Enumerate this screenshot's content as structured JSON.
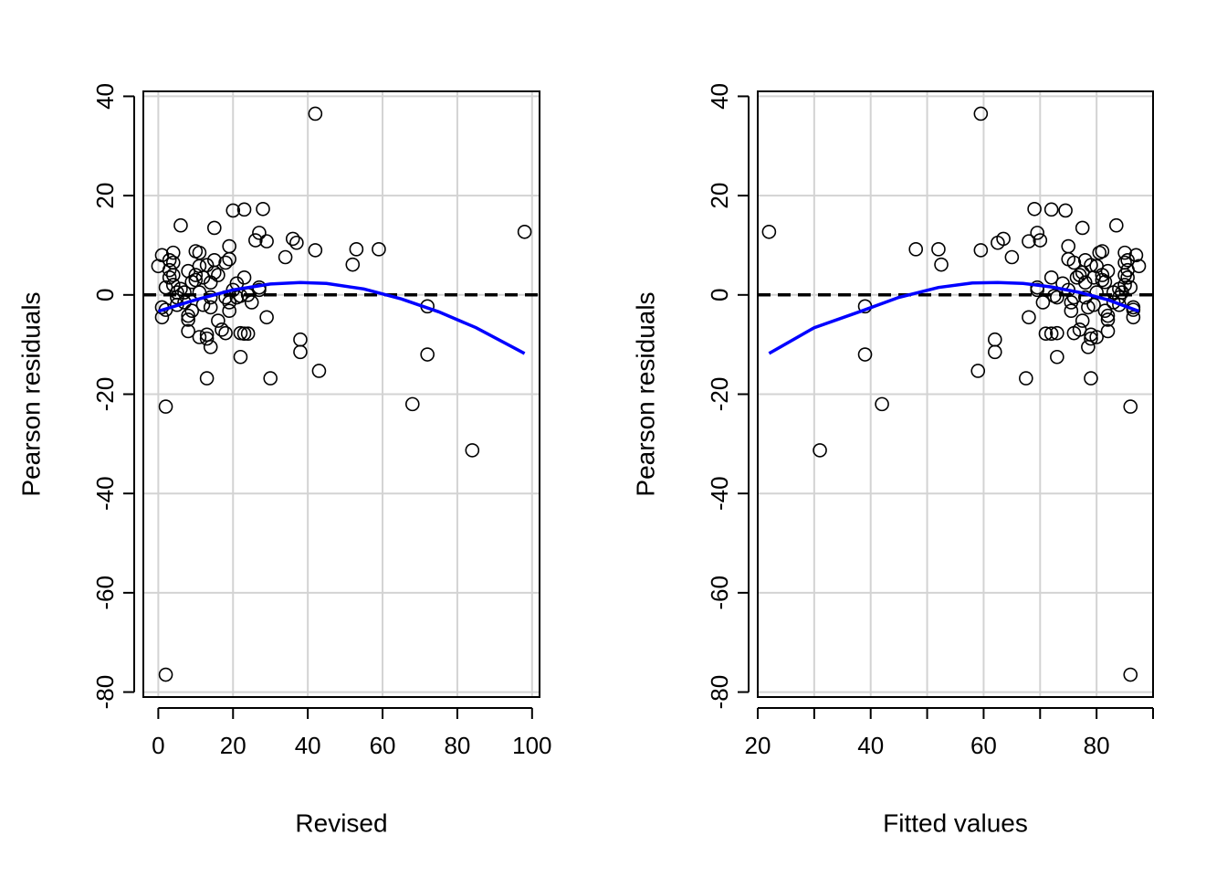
{
  "chart_data": [
    {
      "type": "scatter",
      "xlabel": "Revised",
      "ylabel": "Pearson residuals",
      "xlim": [
        -4,
        102
      ],
      "ylim": [
        -81,
        41
      ],
      "xticks": [
        0,
        20,
        40,
        60,
        80,
        100
      ],
      "yticks": [
        -80,
        -60,
        -40,
        -20,
        0,
        20,
        40
      ],
      "xtick_labels": [
        "0",
        "20",
        "40",
        "60",
        "80",
        "100"
      ],
      "ytick_labels": [
        "-80",
        "-60",
        "-40",
        "-20",
        "0",
        "20",
        "40"
      ],
      "grid": true,
      "reference_line": {
        "y": 0,
        "style": "dashed",
        "color": "#000000"
      },
      "smooth_curve": {
        "color": "#0000ff",
        "x": [
          0,
          10,
          20,
          30,
          38,
          45,
          55,
          65,
          75,
          85,
          98
        ],
        "y": [
          -3.3,
          -1,
          1,
          2.2,
          2.5,
          2.3,
          1.2,
          -0.8,
          -3.4,
          -6.6,
          -11.8
        ]
      },
      "points": [
        [
          0,
          5.8
        ],
        [
          1,
          8
        ],
        [
          1,
          -2.5
        ],
        [
          1,
          -4.5
        ],
        [
          2,
          -3
        ],
        [
          2,
          1.5
        ],
        [
          2,
          -22.5
        ],
        [
          2,
          -76.5
        ],
        [
          3,
          5
        ],
        [
          3,
          3.5
        ],
        [
          3,
          7
        ],
        [
          4,
          8.5
        ],
        [
          4,
          6.5
        ],
        [
          4,
          4
        ],
        [
          4,
          2
        ],
        [
          5,
          0.5
        ],
        [
          5,
          -2
        ],
        [
          5,
          -0.5
        ],
        [
          6,
          1.2
        ],
        [
          6,
          14
        ],
        [
          7,
          0.5
        ],
        [
          7,
          -1.5
        ],
        [
          8,
          4.8
        ],
        [
          8,
          -4.2
        ],
        [
          8,
          -5
        ],
        [
          8,
          -7.3
        ],
        [
          9,
          -3.2
        ],
        [
          9,
          2.6
        ],
        [
          10,
          8.8
        ],
        [
          10,
          4
        ],
        [
          10,
          3
        ],
        [
          11,
          8.5
        ],
        [
          11,
          -8.5
        ],
        [
          11,
          0.5
        ],
        [
          11,
          5.8
        ],
        [
          12,
          3.5
        ],
        [
          12,
          -2
        ],
        [
          13,
          6
        ],
        [
          13,
          -8.8
        ],
        [
          13,
          -16.8
        ],
        [
          13,
          -8
        ],
        [
          14,
          -10.5
        ],
        [
          14,
          -2.5
        ],
        [
          14,
          -0.5
        ],
        [
          14,
          2.5
        ],
        [
          15,
          7
        ],
        [
          15,
          13.5
        ],
        [
          15,
          4.5
        ],
        [
          16,
          -5.2
        ],
        [
          16,
          4
        ],
        [
          17,
          -7
        ],
        [
          18,
          -7.7
        ],
        [
          18,
          -0.5
        ],
        [
          18,
          6.5
        ],
        [
          19,
          -3.2
        ],
        [
          19,
          -1.5
        ],
        [
          19,
          9.8
        ],
        [
          19,
          7.2
        ],
        [
          20,
          17
        ],
        [
          20,
          1
        ],
        [
          21,
          2.3
        ],
        [
          21,
          -0.5
        ],
        [
          22,
          -7.7
        ],
        [
          22,
          -12.5
        ],
        [
          22,
          -0.2
        ],
        [
          23,
          3.5
        ],
        [
          23,
          17.2
        ],
        [
          23,
          -7.8
        ],
        [
          24,
          -7.8
        ],
        [
          24,
          0
        ],
        [
          25,
          -1.5
        ],
        [
          26,
          11
        ],
        [
          27,
          12.5
        ],
        [
          27,
          1
        ],
        [
          27,
          1.5
        ],
        [
          28,
          17.3
        ],
        [
          29,
          -4.5
        ],
        [
          29,
          10.8
        ],
        [
          30,
          -16.8
        ],
        [
          34,
          7.6
        ],
        [
          36,
          11.3
        ],
        [
          37,
          10.5
        ],
        [
          38,
          -9
        ],
        [
          38,
          -11.5
        ],
        [
          42,
          9
        ],
        [
          42,
          36.5
        ],
        [
          43,
          -15.3
        ],
        [
          52,
          6.1
        ],
        [
          53,
          9.2
        ],
        [
          59,
          9.2
        ],
        [
          68,
          -22
        ],
        [
          72,
          -2.3
        ],
        [
          72,
          -12
        ],
        [
          84,
          -31.3
        ],
        [
          98,
          12.7
        ]
      ]
    },
    {
      "type": "scatter",
      "xlabel": "Fitted values",
      "ylabel": "Pearson residuals",
      "xlim": [
        20,
        90
      ],
      "ylim": [
        -81,
        41
      ],
      "xticks": [
        20,
        30,
        40,
        50,
        60,
        70,
        80,
        90
      ],
      "xtick_labels": [
        "20",
        "",
        "40",
        "",
        "60",
        "",
        "80",
        ""
      ],
      "yticks": [
        -80,
        -60,
        -40,
        -20,
        0,
        20,
        40
      ],
      "ytick_labels": [
        "-80",
        "-60",
        "-40",
        "-20",
        "0",
        "20",
        "40"
      ],
      "grid": true,
      "reference_line": {
        "y": 0,
        "style": "dashed",
        "color": "#000000"
      },
      "smooth_curve": {
        "color": "#0000ff",
        "x": [
          22,
          30,
          38,
          45,
          52,
          58,
          62.5,
          67,
          72,
          77,
          82,
          87.5
        ],
        "y": [
          -11.8,
          -6.6,
          -3.4,
          -0.5,
          1.5,
          2.4,
          2.5,
          2.3,
          1.6,
          0.5,
          -1,
          -3.3
        ]
      },
      "points": [
        [
          22,
          12.7
        ],
        [
          31,
          -31.3
        ],
        [
          39,
          -2.3
        ],
        [
          39,
          -12
        ],
        [
          42,
          -22
        ],
        [
          48,
          9.2
        ],
        [
          52,
          9.2
        ],
        [
          52.5,
          6.1
        ],
        [
          59,
          -15.3
        ],
        [
          59.5,
          36.5
        ],
        [
          59.5,
          9
        ],
        [
          62,
          -9
        ],
        [
          62,
          -11.5
        ],
        [
          62.5,
          10.5
        ],
        [
          63.5,
          11.3
        ],
        [
          65,
          7.6
        ],
        [
          67.5,
          -16.8
        ],
        [
          68,
          10.8
        ],
        [
          68,
          -4.5
        ],
        [
          69,
          17.3
        ],
        [
          69.5,
          12.5
        ],
        [
          69.5,
          1.5
        ],
        [
          69.5,
          1
        ],
        [
          70,
          11
        ],
        [
          70.5,
          -1.5
        ],
        [
          71,
          -7.8
        ],
        [
          72,
          3.5
        ],
        [
          72,
          17.2
        ],
        [
          72,
          -7.8
        ],
        [
          72.5,
          -0.2
        ],
        [
          73,
          -12.5
        ],
        [
          73,
          -7.7
        ],
        [
          73,
          -0.5
        ],
        [
          74,
          2.3
        ],
        [
          74.5,
          17
        ],
        [
          75,
          1
        ],
        [
          75,
          9.8
        ],
        [
          75,
          7.2
        ],
        [
          75.5,
          -1.5
        ],
        [
          75.5,
          -3.2
        ],
        [
          76,
          6.5
        ],
        [
          76,
          -0.5
        ],
        [
          76,
          -7.7
        ],
        [
          76.5,
          3.5
        ],
        [
          77,
          -7
        ],
        [
          77,
          4
        ],
        [
          77.5,
          -5.2
        ],
        [
          77.5,
          4.5
        ],
        [
          77.5,
          13.5
        ],
        [
          78,
          7
        ],
        [
          78,
          2.5
        ],
        [
          78,
          -0.5
        ],
        [
          78.5,
          -2.5
        ],
        [
          78.5,
          -10.5
        ],
        [
          79,
          -8
        ],
        [
          79,
          -16.8
        ],
        [
          79,
          -8.8
        ],
        [
          79,
          6
        ],
        [
          79.5,
          -2
        ],
        [
          79.5,
          3.5
        ],
        [
          80,
          5.8
        ],
        [
          80,
          0.5
        ],
        [
          80,
          -8.5
        ],
        [
          80.5,
          8.5
        ],
        [
          81,
          3
        ],
        [
          81,
          4
        ],
        [
          81,
          8.8
        ],
        [
          81.5,
          2.6
        ],
        [
          81.5,
          -3.2
        ],
        [
          82,
          -7.3
        ],
        [
          82,
          -5
        ],
        [
          82,
          -4.2
        ],
        [
          82,
          4.8
        ],
        [
          83,
          -1.5
        ],
        [
          83,
          0.5
        ],
        [
          83.5,
          14
        ],
        [
          84,
          1.2
        ],
        [
          84,
          -0.5
        ],
        [
          84,
          -2
        ],
        [
          84.5,
          0.5
        ],
        [
          85,
          2
        ],
        [
          85,
          4
        ],
        [
          85,
          6.5
        ],
        [
          85,
          8.5
        ],
        [
          85.5,
          7
        ],
        [
          85.5,
          3.5
        ],
        [
          85.5,
          5
        ],
        [
          86,
          -76.5
        ],
        [
          86,
          -22.5
        ],
        [
          86,
          1.5
        ],
        [
          86.5,
          -3
        ],
        [
          86.5,
          -4.5
        ],
        [
          86.5,
          -2.5
        ],
        [
          87,
          8
        ],
        [
          87.5,
          5.8
        ]
      ]
    }
  ]
}
